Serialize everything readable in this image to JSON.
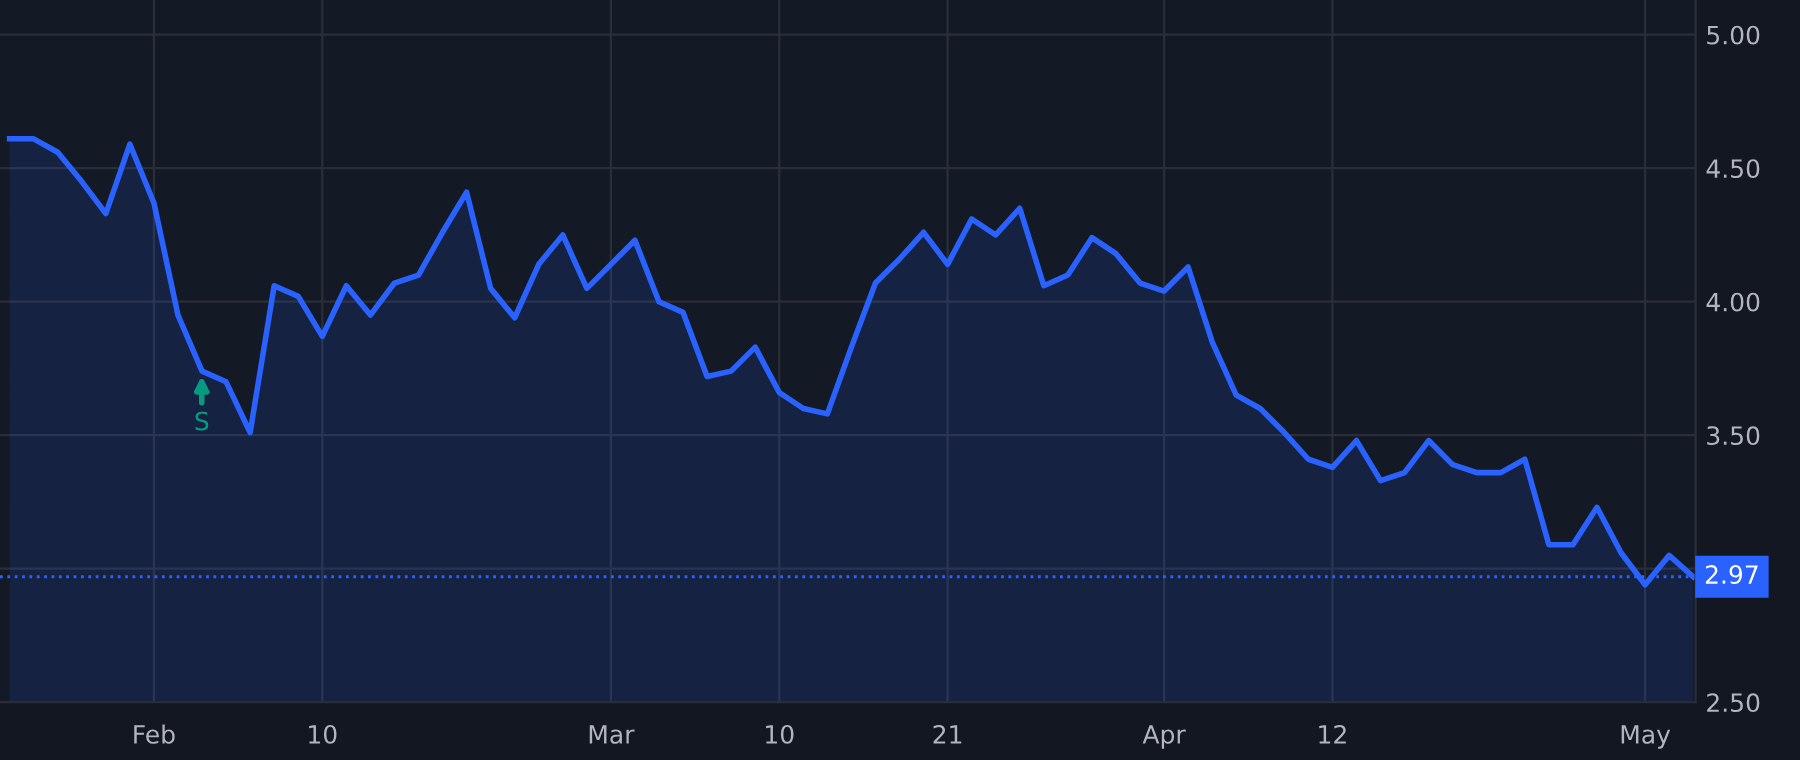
{
  "chart_data": {
    "type": "area",
    "categories": [
      null,
      null,
      null,
      null,
      null,
      null,
      "Feb",
      null,
      null,
      null,
      null,
      null,
      null,
      "10",
      null,
      null,
      null,
      null,
      null,
      null,
      null,
      null,
      null,
      null,
      null,
      "Mar",
      null,
      null,
      null,
      null,
      null,
      null,
      "10",
      null,
      null,
      null,
      null,
      null,
      null,
      "21",
      null,
      null,
      null,
      null,
      null,
      null,
      null,
      null,
      "Apr",
      null,
      null,
      null,
      null,
      null,
      null,
      "12",
      null,
      null,
      null,
      null,
      null,
      null,
      null,
      null,
      null,
      null,
      null,
      null,
      "May",
      null,
      null
    ],
    "series": [
      {
        "color": "#2962ff",
        "values": [
          4.61,
          4.61,
          4.56,
          4.45,
          4.33,
          4.59,
          4.37,
          3.95,
          3.74,
          3.7,
          3.51,
          4.06,
          4.02,
          3.87,
          4.06,
          3.95,
          4.07,
          4.1,
          4.26,
          4.41,
          4.05,
          3.94,
          4.14,
          4.25,
          4.05,
          4.14,
          4.23,
          4.0,
          3.96,
          3.72,
          3.74,
          3.83,
          3.66,
          3.6,
          3.58,
          3.83,
          4.07,
          4.16,
          4.26,
          4.14,
          4.31,
          4.25,
          4.35,
          4.06,
          4.1,
          4.24,
          4.18,
          4.07,
          4.04,
          4.13,
          3.85,
          3.65,
          3.6,
          3.51,
          3.41,
          3.38,
          3.48,
          3.33,
          3.36,
          3.48,
          3.39,
          3.36,
          3.36,
          3.41,
          3.09,
          3.09,
          3.23,
          3.06,
          2.94,
          3.05,
          2.97
        ]
      }
    ],
    "ylim": [
      2.5,
      5.13
    ],
    "yticks": [
      {
        "value": 2.5,
        "label": "2.50"
      },
      {
        "value": 3.0,
        "label": null
      },
      {
        "value": 3.5,
        "label": "3.50"
      },
      {
        "value": 4.0,
        "label": "4.00"
      },
      {
        "value": 4.5,
        "label": "4.50"
      },
      {
        "value": 5.0,
        "label": "5.00"
      }
    ],
    "grid": true,
    "ref_lines": [
      {
        "axis": "y",
        "value": 2.97,
        "label": "2.97",
        "color": "#2962ff",
        "line_style": "dotted"
      }
    ],
    "annotations": [
      "S"
    ]
  }
}
